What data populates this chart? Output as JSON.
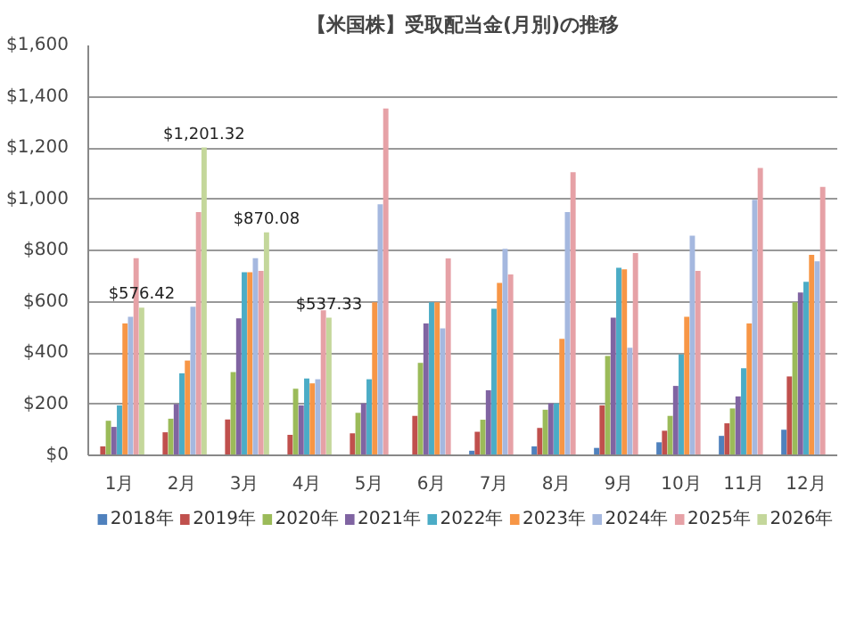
{
  "chart_data": {
    "type": "bar",
    "title": "【米国株】受取配当金(月別)の推移",
    "categories": [
      "1月",
      "2月",
      "3月",
      "4月",
      "5月",
      "6月",
      "7月",
      "8月",
      "9月",
      "10月",
      "11月",
      "12月"
    ],
    "series": [
      {
        "name": "2018年",
        "color": "#4f81bd",
        "values": [
          null,
          null,
          null,
          null,
          null,
          null,
          18,
          35,
          29,
          51,
          76,
          100
        ]
      },
      {
        "name": "2019年",
        "color": "#c0504d",
        "values": [
          35,
          90,
          140,
          80,
          86,
          154,
          92,
          107,
          195,
          96,
          125,
          308
        ]
      },
      {
        "name": "2020年",
        "color": "#9bbb59",
        "values": [
          135,
          143,
          325,
          260,
          166,
          361,
          139,
          178,
          388,
          154,
          183,
          597
        ]
      },
      {
        "name": "2021年",
        "color": "#8064a2",
        "values": [
          111,
          200,
          535,
          195,
          203,
          515,
          254,
          203,
          537,
          271,
          230,
          636
        ]
      },
      {
        "name": "2022年",
        "color": "#4bacc6",
        "values": [
          195,
          320,
          715,
          300,
          297,
          597,
          572,
          203,
          732,
          394,
          340,
          677
        ]
      },
      {
        "name": "2023年",
        "color": "#f79646",
        "values": [
          515,
          370,
          715,
          281,
          597,
          597,
          673,
          455,
          726,
          541,
          515,
          783
        ]
      },
      {
        "name": "2024年",
        "color": "#a5b8df",
        "values": [
          541,
          580,
          770,
          297,
          980,
          496,
          806,
          950,
          420,
          857,
          997,
          757
        ]
      },
      {
        "name": "2025年",
        "color": "#e6a1a6",
        "values": [
          770,
          950,
          720,
          566,
          1354,
          769,
          706,
          1105,
          790,
          720,
          1122,
          1048
        ]
      },
      {
        "name": "2026年",
        "color": "#c4d79b",
        "values": [
          576.42,
          1201.32,
          870.08,
          537.33,
          null,
          null,
          null,
          null,
          null,
          null,
          null,
          null
        ],
        "value_labels": [
          "$576.42",
          "$1,201.32",
          "$870.08",
          "$537.33",
          null,
          null,
          null,
          null,
          null,
          null,
          null,
          null
        ]
      }
    ],
    "ylim": [
      0,
      1600
    ],
    "yticks": [
      {
        "value": 0,
        "label": "$0"
      },
      {
        "value": 200,
        "label": "$200"
      },
      {
        "value": 400,
        "label": "$400"
      },
      {
        "value": 600,
        "label": "$600"
      },
      {
        "value": 800,
        "label": "$800"
      },
      {
        "value": 1000,
        "label": "$1,000"
      },
      {
        "value": 1200,
        "label": "$1,200"
      },
      {
        "value": 1400,
        "label": "$1,400"
      },
      {
        "value": 1600,
        "label": "$1,600"
      }
    ],
    "grid": "y",
    "legend": "bottom"
  }
}
